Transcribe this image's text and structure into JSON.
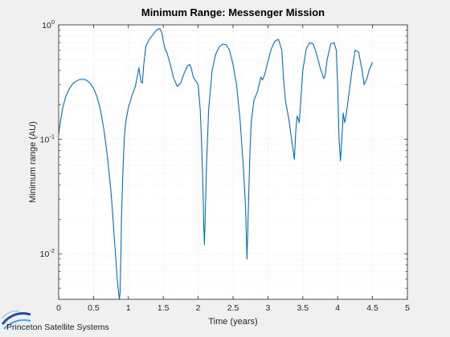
{
  "chart_data": {
    "type": "line",
    "title": "Minimum Range: Messenger Mission",
    "xlabel": "Time (years)",
    "ylabel": "Minimum range (AU)",
    "xlim": [
      0,
      5
    ],
    "ylim": [
      0.004,
      1.0
    ],
    "yscale": "log",
    "grid": true,
    "xticks": [
      0,
      0.5,
      1,
      1.5,
      2,
      2.5,
      3,
      3.5,
      4,
      4.5,
      5
    ],
    "xtick_labels": [
      "0",
      "0.5",
      "1",
      "1.5",
      "2",
      "2.5",
      "3",
      "3.5",
      "4",
      "4.5",
      "5"
    ],
    "yticks": [
      0.01,
      0.1,
      1
    ],
    "ytick_labels": [
      {
        "base": "10",
        "exp": "-2"
      },
      {
        "base": "10",
        "exp": "-1"
      },
      {
        "base": "10",
        "exp": "0"
      }
    ],
    "line_color": "#0072bd",
    "series": [
      {
        "x": [
          0,
          0.03,
          0.06,
          0.1,
          0.15,
          0.2,
          0.25,
          0.3,
          0.35,
          0.4,
          0.45,
          0.5,
          0.55,
          0.6,
          0.65,
          0.7,
          0.75,
          0.78,
          0.8,
          0.82,
          0.84,
          0.86,
          0.87,
          0.88,
          0.885,
          0.895,
          0.9,
          0.92,
          0.94,
          0.96,
          1.0,
          1.05,
          1.1,
          1.15,
          1.18,
          1.2,
          1.22,
          1.25,
          1.3,
          1.35,
          1.4,
          1.45,
          1.48,
          1.5,
          1.53,
          1.55,
          1.6,
          1.65,
          1.7,
          1.75,
          1.8,
          1.85,
          1.88,
          1.9,
          1.93,
          1.97,
          2.0,
          2.03,
          2.05,
          2.07,
          2.08,
          2.09,
          2.1,
          2.12,
          2.15,
          2.2,
          2.25,
          2.3,
          2.35,
          2.4,
          2.45,
          2.5,
          2.55,
          2.6,
          2.65,
          2.68,
          2.7,
          2.72,
          2.74,
          2.76,
          2.8,
          2.85,
          2.9,
          2.92,
          2.95,
          3.0,
          3.05,
          3.1,
          3.15,
          3.2,
          3.22,
          3.25,
          3.3,
          3.33,
          3.35,
          3.38,
          3.4,
          3.42,
          3.45,
          3.5,
          3.55,
          3.6,
          3.65,
          3.7,
          3.75,
          3.8,
          3.82,
          3.85,
          3.9,
          3.95,
          3.98,
          4.0,
          4.02,
          4.04,
          4.06,
          4.08,
          4.1,
          4.12,
          4.15,
          4.2,
          4.25,
          4.3,
          4.35,
          4.38,
          4.42,
          4.45,
          4.5
        ],
        "y": [
          0.112,
          0.15,
          0.19,
          0.235,
          0.275,
          0.305,
          0.322,
          0.333,
          0.335,
          0.328,
          0.31,
          0.28,
          0.235,
          0.18,
          0.12,
          0.07,
          0.035,
          0.02,
          0.013,
          0.009,
          0.006,
          0.0045,
          0.004,
          0.0045,
          0.006,
          0.012,
          0.02,
          0.05,
          0.1,
          0.14,
          0.19,
          0.24,
          0.29,
          0.42,
          0.32,
          0.31,
          0.45,
          0.65,
          0.75,
          0.82,
          0.9,
          0.93,
          0.85,
          0.72,
          0.6,
          0.58,
          0.45,
          0.34,
          0.29,
          0.31,
          0.38,
          0.44,
          0.45,
          0.42,
          0.35,
          0.32,
          0.3,
          0.18,
          0.09,
          0.035,
          0.018,
          0.012,
          0.02,
          0.06,
          0.18,
          0.4,
          0.55,
          0.64,
          0.68,
          0.67,
          0.6,
          0.45,
          0.3,
          0.15,
          0.055,
          0.025,
          0.009,
          0.025,
          0.07,
          0.14,
          0.22,
          0.26,
          0.35,
          0.33,
          0.36,
          0.48,
          0.62,
          0.72,
          0.75,
          0.6,
          0.36,
          0.22,
          0.15,
          0.11,
          0.09,
          0.067,
          0.12,
          0.16,
          0.14,
          0.4,
          0.62,
          0.7,
          0.68,
          0.55,
          0.42,
          0.34,
          0.36,
          0.5,
          0.68,
          0.7,
          0.6,
          0.3,
          0.1,
          0.065,
          0.1,
          0.17,
          0.14,
          0.16,
          0.22,
          0.38,
          0.6,
          0.58,
          0.4,
          0.3,
          0.34,
          0.4,
          0.47
        ]
      }
    ]
  },
  "watermark": {
    "text": "Princeton Satellite Systems",
    "logo_icon": "pss-swoosh-logo-icon"
  }
}
